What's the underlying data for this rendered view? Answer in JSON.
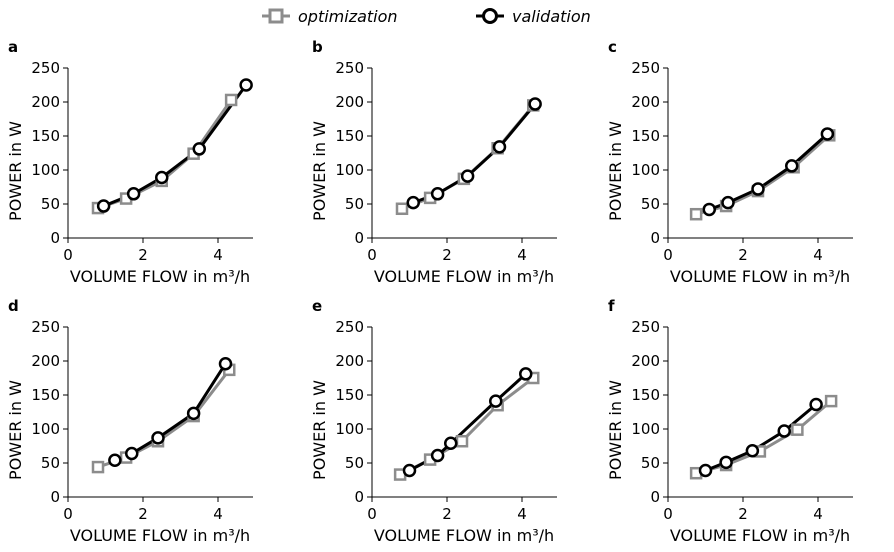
{
  "legend": [
    {
      "name": "optimization",
      "color": "#8c8c8c",
      "marker": "square"
    },
    {
      "name": "validation",
      "color": "#000000",
      "marker": "circle"
    }
  ],
  "axes": {
    "xlabel": "VOLUME FLOW in m³/h",
    "ylabel": "POWER in W",
    "xticks": [
      0,
      2,
      4
    ],
    "yticks": [
      0,
      50,
      100,
      150,
      200,
      250
    ],
    "xlim": [
      0,
      4.8
    ],
    "ylim": [
      0,
      250
    ]
  },
  "chart_data": [
    {
      "type": "line",
      "panel": "a",
      "xlabel": "VOLUME FLOW in m³/h",
      "ylabel": "POWER in W",
      "xlim": [
        0,
        4.8
      ],
      "ylim": [
        0,
        250
      ],
      "series": [
        {
          "name": "optimization",
          "x": [
            0.8,
            1.55,
            2.5,
            3.35,
            4.35
          ],
          "y": [
            44,
            58,
            84,
            124,
            203
          ]
        },
        {
          "name": "validation",
          "x": [
            0.95,
            1.75,
            2.5,
            3.5,
            4.75
          ],
          "y": [
            47,
            65,
            89,
            131,
            225
          ]
        }
      ]
    },
    {
      "type": "line",
      "panel": "b",
      "xlabel": "VOLUME FLOW in m³/h",
      "ylabel": "POWER in W",
      "xlim": [
        0,
        4.8
      ],
      "ylim": [
        0,
        250
      ],
      "series": [
        {
          "name": "optimization",
          "x": [
            0.8,
            1.55,
            2.45,
            3.35,
            4.3
          ],
          "y": [
            43,
            59,
            87,
            132,
            195
          ]
        },
        {
          "name": "validation",
          "x": [
            1.1,
            1.75,
            2.55,
            3.4,
            4.35
          ],
          "y": [
            52,
            65,
            91,
            134,
            197
          ]
        }
      ]
    },
    {
      "type": "line",
      "panel": "c",
      "xlabel": "VOLUME FLOW in m³/h",
      "ylabel": "POWER in W",
      "xlim": [
        0,
        4.8
      ],
      "ylim": [
        0,
        250
      ],
      "series": [
        {
          "name": "optimization",
          "x": [
            0.75,
            1.55,
            2.4,
            3.35,
            4.3
          ],
          "y": [
            35,
            47,
            69,
            104,
            151
          ]
        },
        {
          "name": "validation",
          "x": [
            1.1,
            1.6,
            2.4,
            3.3,
            4.25
          ],
          "y": [
            42,
            52,
            72,
            106,
            153
          ]
        }
      ]
    },
    {
      "type": "line",
      "panel": "d",
      "xlabel": "VOLUME FLOW in m³/h",
      "ylabel": "POWER in W",
      "xlim": [
        0,
        4.8
      ],
      "ylim": [
        0,
        250
      ],
      "series": [
        {
          "name": "optimization",
          "x": [
            0.8,
            1.55,
            2.4,
            3.35,
            4.3
          ],
          "y": [
            44,
            58,
            82,
            119,
            187
          ]
        },
        {
          "name": "validation",
          "x": [
            1.25,
            1.7,
            2.4,
            3.35,
            4.2
          ],
          "y": [
            54,
            64,
            87,
            123,
            196
          ]
        }
      ]
    },
    {
      "type": "line",
      "panel": "e",
      "xlabel": "VOLUME FLOW in m³/h",
      "ylabel": "POWER in W",
      "xlim": [
        0,
        4.8
      ],
      "ylim": [
        0,
        250
      ],
      "series": [
        {
          "name": "optimization",
          "x": [
            0.75,
            1.55,
            2.4,
            3.35,
            4.3
          ],
          "y": [
            33,
            55,
            82,
            135,
            175
          ]
        },
        {
          "name": "validation",
          "x": [
            1.0,
            1.75,
            2.1,
            3.3,
            4.1
          ],
          "y": [
            39,
            61,
            79,
            141,
            181
          ]
        }
      ]
    },
    {
      "type": "line",
      "panel": "f",
      "xlabel": "VOLUME FLOW in m³/h",
      "ylabel": "POWER in W",
      "xlim": [
        0,
        4.8
      ],
      "ylim": [
        0,
        250
      ],
      "series": [
        {
          "name": "optimization",
          "x": [
            0.75,
            1.55,
            2.45,
            3.45,
            4.35
          ],
          "y": [
            35,
            47,
            67,
            99,
            141
          ]
        },
        {
          "name": "validation",
          "x": [
            1.0,
            1.55,
            2.25,
            3.1,
            3.95
          ],
          "y": [
            39,
            51,
            68,
            97,
            136
          ]
        }
      ]
    }
  ]
}
